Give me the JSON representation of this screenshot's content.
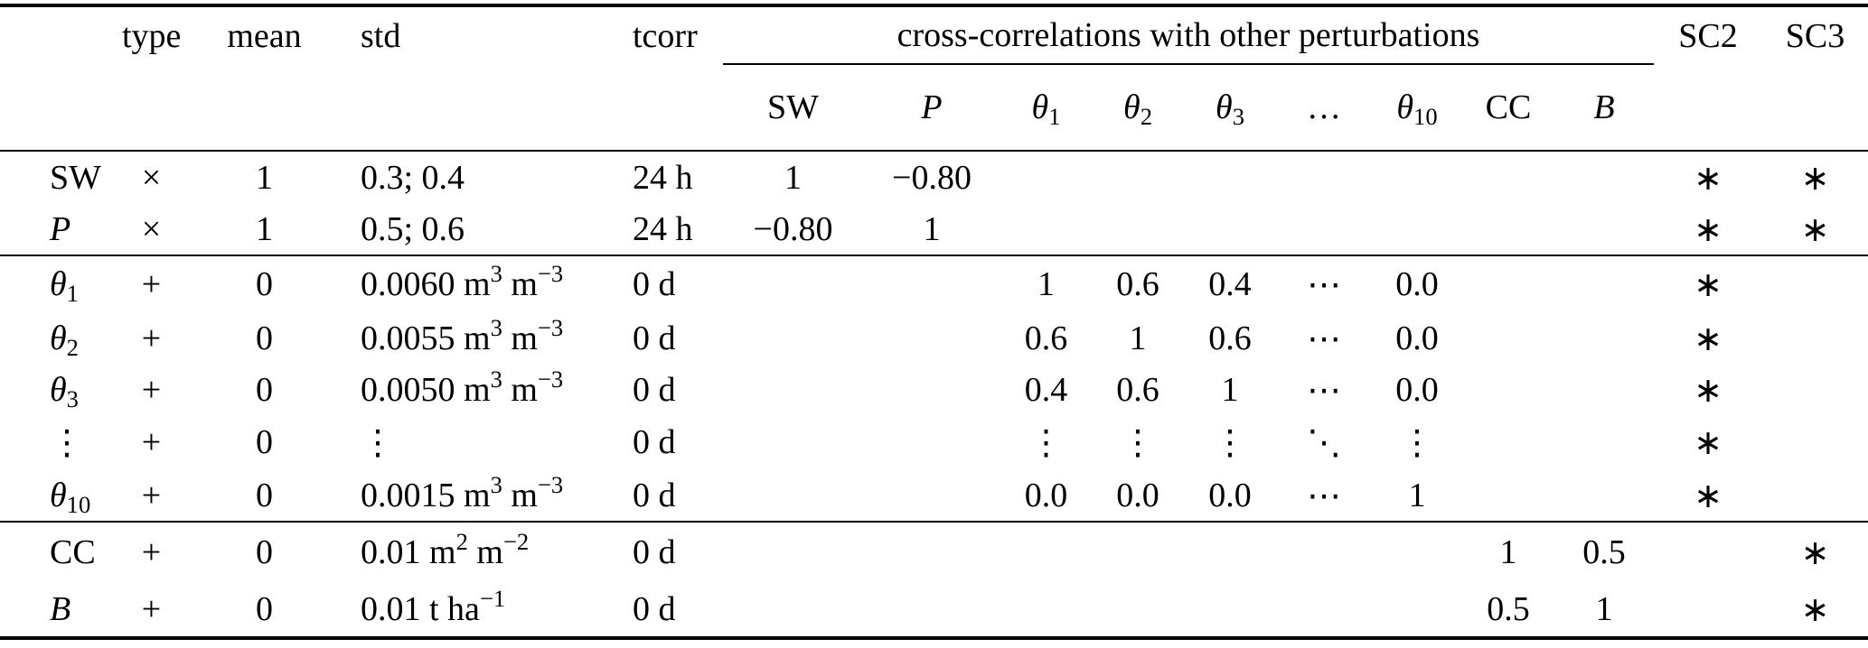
{
  "colors": {
    "background": "#ffffff",
    "text": "#000000",
    "rule": "#000000"
  },
  "table": {
    "headers": {
      "type": "type",
      "mean": "mean",
      "std": "std",
      "tcorr": "tcorr",
      "cross_span": "cross-correlations with other perturbations",
      "sc2": "SC2",
      "sc3": "SC3",
      "sub": [
        [
          {
            "t": "SW"
          }
        ],
        [
          {
            "t": "P",
            "i": true
          }
        ],
        [
          {
            "t": "θ",
            "i": true
          },
          {
            "t": "1",
            "sub": true
          }
        ],
        [
          {
            "t": "θ",
            "i": true
          },
          {
            "t": "2",
            "sub": true
          }
        ],
        [
          {
            "t": "θ",
            "i": true
          },
          {
            "t": "3",
            "sub": true
          }
        ],
        [
          {
            "t": "…"
          }
        ],
        [
          {
            "t": "θ",
            "i": true
          },
          {
            "t": "10",
            "sub": true
          }
        ],
        [
          {
            "t": "CC"
          }
        ],
        [
          {
            "t": "B",
            "i": true
          }
        ]
      ]
    },
    "corr_col_order": [
      "sw",
      "p",
      "t1",
      "t2",
      "t3",
      "dots",
      "t10",
      "cc",
      "b"
    ],
    "rows": [
      {
        "id": "sw",
        "section": 1,
        "label": [
          {
            "t": "SW"
          }
        ],
        "type": "×",
        "mean": "1",
        "std": [
          {
            "t": "0.3; 0.4"
          }
        ],
        "tcorr": "24 h",
        "corr": {
          "sw": "1",
          "p": "−0.80"
        },
        "sc2": "∗",
        "sc3": "∗"
      },
      {
        "id": "p",
        "section": 1,
        "label": [
          {
            "t": "P",
            "i": true
          }
        ],
        "type": "×",
        "mean": "1",
        "std": [
          {
            "t": "0.5; 0.6"
          }
        ],
        "tcorr": "24 h",
        "corr": {
          "sw": "−0.80",
          "p": "1"
        },
        "sc2": "∗",
        "sc3": "∗"
      },
      {
        "id": "theta1",
        "section": 2,
        "label": [
          {
            "t": "θ",
            "i": true
          },
          {
            "t": "1",
            "sub": true
          }
        ],
        "type": "+",
        "mean": "0",
        "std": [
          {
            "t": "0.0060 m"
          },
          {
            "t": "3",
            "sup": true
          },
          {
            "t": " m"
          },
          {
            "t": "−3",
            "sup": true
          }
        ],
        "tcorr": "0 d",
        "corr": {
          "t1": "1",
          "t2": "0.6",
          "t3": "0.4",
          "dots": "⋯",
          "t10": "0.0"
        },
        "sc2": "∗",
        "sc3": ""
      },
      {
        "id": "theta2",
        "section": 2,
        "label": [
          {
            "t": "θ",
            "i": true
          },
          {
            "t": "2",
            "sub": true
          }
        ],
        "type": "+",
        "mean": "0",
        "std": [
          {
            "t": "0.0055 m"
          },
          {
            "t": "3",
            "sup": true
          },
          {
            "t": " m"
          },
          {
            "t": "−3",
            "sup": true
          }
        ],
        "tcorr": "0 d",
        "corr": {
          "t1": "0.6",
          "t2": "1",
          "t3": "0.6",
          "dots": "⋯",
          "t10": "0.0"
        },
        "sc2": "∗",
        "sc3": ""
      },
      {
        "id": "theta3",
        "section": 2,
        "label": [
          {
            "t": "θ",
            "i": true
          },
          {
            "t": "3",
            "sub": true
          }
        ],
        "type": "+",
        "mean": "0",
        "std": [
          {
            "t": "0.0050 m"
          },
          {
            "t": "3",
            "sup": true
          },
          {
            "t": " m"
          },
          {
            "t": "−3",
            "sup": true
          }
        ],
        "tcorr": "0 d",
        "corr": {
          "t1": "0.4",
          "t2": "0.6",
          "t3": "1",
          "dots": "⋯",
          "t10": "0.0"
        },
        "sc2": "∗",
        "sc3": ""
      },
      {
        "id": "dots",
        "section": 2,
        "label": [
          {
            "t": "⋮"
          }
        ],
        "type": "+",
        "mean": "0",
        "std": [
          {
            "t": "⋮"
          }
        ],
        "tcorr": "0 d",
        "corr": {
          "t1": "⋮",
          "t2": "⋮",
          "t3": "⋮",
          "dots": "⋱",
          "t10": "⋮"
        },
        "sc2": "∗",
        "sc3": ""
      },
      {
        "id": "theta10",
        "section": 2,
        "label": [
          {
            "t": "θ",
            "i": true
          },
          {
            "t": "10",
            "sub": true
          }
        ],
        "type": "+",
        "mean": "0",
        "std": [
          {
            "t": "0.0015 m"
          },
          {
            "t": "3",
            "sup": true
          },
          {
            "t": " m"
          },
          {
            "t": "−3",
            "sup": true
          }
        ],
        "tcorr": "0 d",
        "corr": {
          "t1": "0.0",
          "t2": "0.0",
          "t3": "0.0",
          "dots": "⋯",
          "t10": "1"
        },
        "sc2": "∗",
        "sc3": ""
      },
      {
        "id": "cc",
        "section": 3,
        "label": [
          {
            "t": "CC"
          }
        ],
        "type": "+",
        "mean": "0",
        "std": [
          {
            "t": "0.01 m"
          },
          {
            "t": "2",
            "sup": true
          },
          {
            "t": " m"
          },
          {
            "t": "−2",
            "sup": true
          }
        ],
        "tcorr": "0 d",
        "corr": {
          "cc": "1",
          "b": "0.5"
        },
        "sc2": "",
        "sc3": "∗"
      },
      {
        "id": "b",
        "section": 3,
        "label": [
          {
            "t": "B",
            "i": true
          }
        ],
        "type": "+",
        "mean": "0",
        "std": [
          {
            "t": "0.01 t ha"
          },
          {
            "t": "−1",
            "sup": true
          }
        ],
        "tcorr": "0 d",
        "corr": {
          "cc": "0.5",
          "b": "1"
        },
        "sc2": "",
        "sc3": "∗"
      }
    ]
  }
}
